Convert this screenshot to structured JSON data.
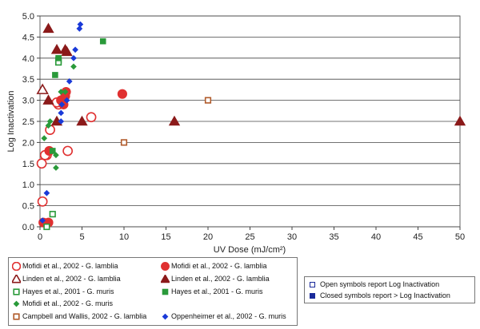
{
  "chart_data": {
    "type": "scatter",
    "xlabel": "UV Dose (mJ/cm²)",
    "ylabel": "Log Inactivation",
    "xlim": [
      0,
      50
    ],
    "ylim": [
      0,
      5
    ],
    "x_ticks": [
      "0",
      "5",
      "10",
      "15",
      "20",
      "25",
      "30",
      "35",
      "40",
      "45",
      "50"
    ],
    "y_ticks": [
      "0.0",
      "0.5",
      "1.0",
      "1.5",
      "2.0",
      "2.5",
      "3.0",
      "3.5",
      "4.0",
      "4.5",
      "5.0"
    ],
    "grid": "horizontal",
    "series": [
      {
        "name": "Mofidi et al., 2002 - G. lamblia",
        "marker": "circle",
        "filled": false,
        "color": "#e03030",
        "points": [
          [
            0.2,
            1.5
          ],
          [
            0.3,
            0.6
          ],
          [
            0.8,
            1.7
          ],
          [
            0.6,
            1.7
          ],
          [
            1.2,
            2.3
          ],
          [
            2.2,
            2.9
          ],
          [
            3.3,
            1.8
          ],
          [
            6.1,
            2.6
          ],
          [
            2.0,
            2.95
          ]
        ]
      },
      {
        "name": "Mofidi et al., 2002 - G. lamblia",
        "marker": "circle",
        "filled": true,
        "color": "#e03030",
        "points": [
          [
            0.4,
            0.1
          ],
          [
            1.0,
            0.1
          ],
          [
            1.1,
            1.8
          ],
          [
            2.5,
            3.0
          ],
          [
            3.0,
            3.1
          ],
          [
            3.1,
            3.2
          ],
          [
            9.8,
            3.15
          ],
          [
            2.8,
            2.9
          ]
        ]
      },
      {
        "name": "Linden et al., 2002 - G. lamblia",
        "marker": "triangle",
        "filled": false,
        "color": "#8b1a1a",
        "points": [
          [
            0.3,
            3.25
          ]
        ]
      },
      {
        "name": "Linden et al., 2002 - G. lamblia",
        "marker": "triangle",
        "filled": true,
        "color": "#8b1a1a",
        "points": [
          [
            1.0,
            4.7
          ],
          [
            2.0,
            4.2
          ],
          [
            3.0,
            4.2
          ],
          [
            3.2,
            4.15
          ],
          [
            1.0,
            3.0
          ],
          [
            2.0,
            2.5
          ],
          [
            5.0,
            2.5
          ],
          [
            16,
            2.5
          ],
          [
            50,
            2.5
          ]
        ]
      },
      {
        "name": "Hayes et al., 2001 - G. muris",
        "marker": "square",
        "filled": false,
        "color": "#2a9a3a",
        "points": [
          [
            0.8,
            0.0
          ],
          [
            1.5,
            0.3
          ],
          [
            2.2,
            3.95
          ],
          [
            2.2,
            3.9
          ]
        ]
      },
      {
        "name": "Hayes et al., 2001 - G. muris",
        "marker": "square",
        "filled": true,
        "color": "#2a9a3a",
        "points": [
          [
            7.5,
            4.4
          ],
          [
            1.8,
            3.6
          ],
          [
            2.2,
            4.0
          ],
          [
            1.5,
            1.8
          ]
        ]
      },
      {
        "name": "Mofidi et al., 2002 - G. muris",
        "marker": "diamond",
        "filled": true,
        "color": "#2a9a3a",
        "points": [
          [
            0.5,
            2.1
          ],
          [
            1.0,
            2.4
          ],
          [
            1.2,
            2.5
          ],
          [
            2.5,
            3.2
          ],
          [
            3.0,
            3.2
          ],
          [
            4.0,
            3.8
          ],
          [
            1.9,
            1.7
          ],
          [
            1.9,
            1.4
          ]
        ]
      },
      {
        "name": "Campbell and Wallis, 2002 - G. lamblia",
        "marker": "square",
        "filled": false,
        "color": "#b05a2a",
        "points": [
          [
            10,
            2.0
          ],
          [
            20,
            3.0
          ]
        ]
      },
      {
        "name": "Oppenheimer et al., 2002 - G. muris",
        "marker": "diamond",
        "filled": true,
        "color": "#1a3ad8",
        "points": [
          [
            4.8,
            4.8
          ],
          [
            4.7,
            4.7
          ],
          [
            4.2,
            4.2
          ],
          [
            4.0,
            4.0
          ],
          [
            3.5,
            3.45
          ],
          [
            3.2,
            3.0
          ],
          [
            2.6,
            2.9
          ],
          [
            2.5,
            2.5
          ],
          [
            0.8,
            0.8
          ],
          [
            0.3,
            0.15
          ],
          [
            2.5,
            2.7
          ]
        ]
      }
    ]
  },
  "notes": {
    "open": "Open symbols report Log Inactivation",
    "closed": "Closed symbols report > Log Inactivation"
  }
}
